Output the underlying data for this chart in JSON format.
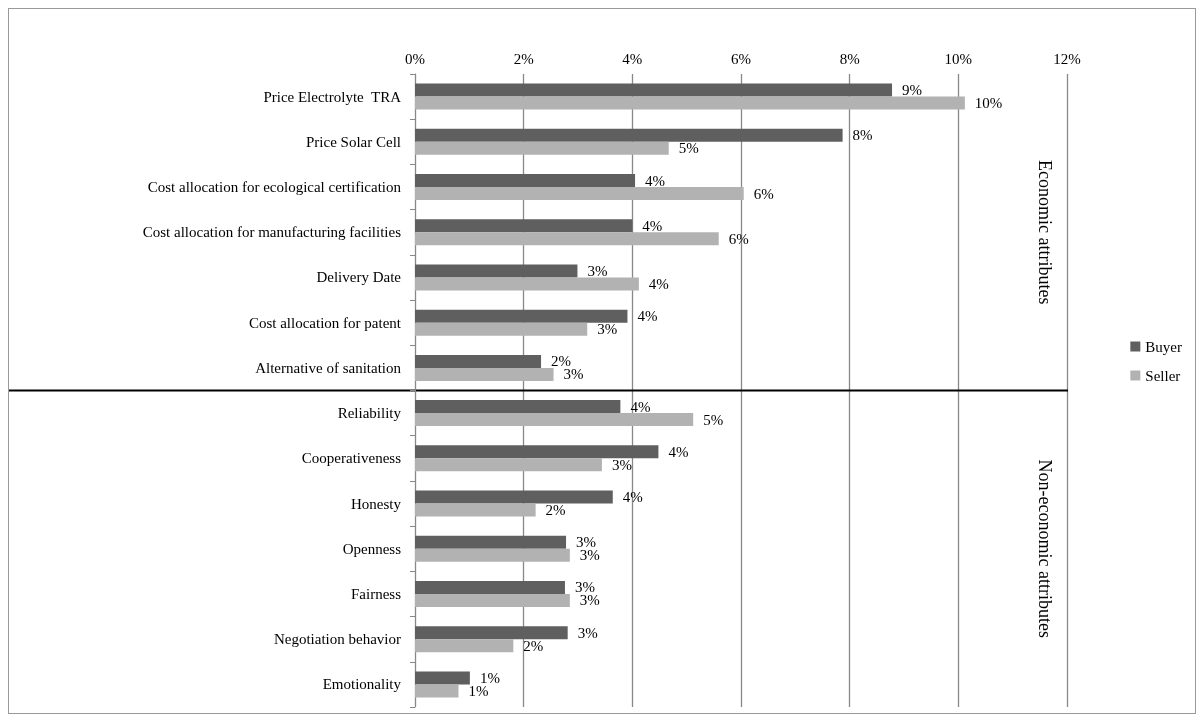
{
  "chart_data": {
    "type": "bar",
    "orientation": "horizontal",
    "categories": [
      "Price Electrolyte  TRA",
      "Price Solar Cell",
      "Cost allocation for ecological certification",
      "Cost allocation for manufacturing facilities",
      "Delivery Date",
      "Cost allocation for patent",
      "Alternative of sanitation",
      "Reliability",
      "Cooperativeness",
      "Honesty",
      "Openness",
      "Fairness",
      "Negotiation behavior",
      "Emotionality"
    ],
    "series": [
      {
        "name": "Buyer",
        "color": "#5f5f5f",
        "values": [
          8.78,
          7.87,
          4.05,
          4.0,
          2.99,
          3.91,
          2.32,
          3.78,
          4.48,
          3.64,
          2.78,
          2.76,
          2.81,
          1.01
        ],
        "value_labels": [
          "9%",
          "8%",
          "4%",
          "4%",
          "3%",
          "4%",
          "2%",
          "4%",
          "4%",
          "4%",
          "3%",
          "3%",
          "3%",
          "1%"
        ]
      },
      {
        "name": "Seller",
        "color": "#b2b2b2",
        "values": [
          10.12,
          4.67,
          6.05,
          5.59,
          4.12,
          3.17,
          2.55,
          5.12,
          3.44,
          2.22,
          2.85,
          2.85,
          1.81,
          0.8
        ],
        "value_labels": [
          "10%",
          "5%",
          "6%",
          "6%",
          "4%",
          "3%",
          "3%",
          "5%",
          "3%",
          "2%",
          "3%",
          "3%",
          "2%",
          "1%"
        ]
      }
    ],
    "xlim": [
      0,
      12
    ],
    "xticks": [
      {
        "value": 0,
        "label": "0%"
      },
      {
        "value": 2,
        "label": "2%"
      },
      {
        "value": 4,
        "label": "4%"
      },
      {
        "value": 6,
        "label": "6%"
      },
      {
        "value": 8,
        "label": "8%"
      },
      {
        "value": 10,
        "label": "10%"
      },
      {
        "value": 12,
        "label": "12%"
      }
    ],
    "grid": "x",
    "legend": "right",
    "ref_lines": [
      {
        "axis": "y",
        "value": "Reliability",
        "color": "#000000"
      }
    ],
    "annotations": [
      "Economic attributes",
      "Non-economic attributes"
    ]
  }
}
